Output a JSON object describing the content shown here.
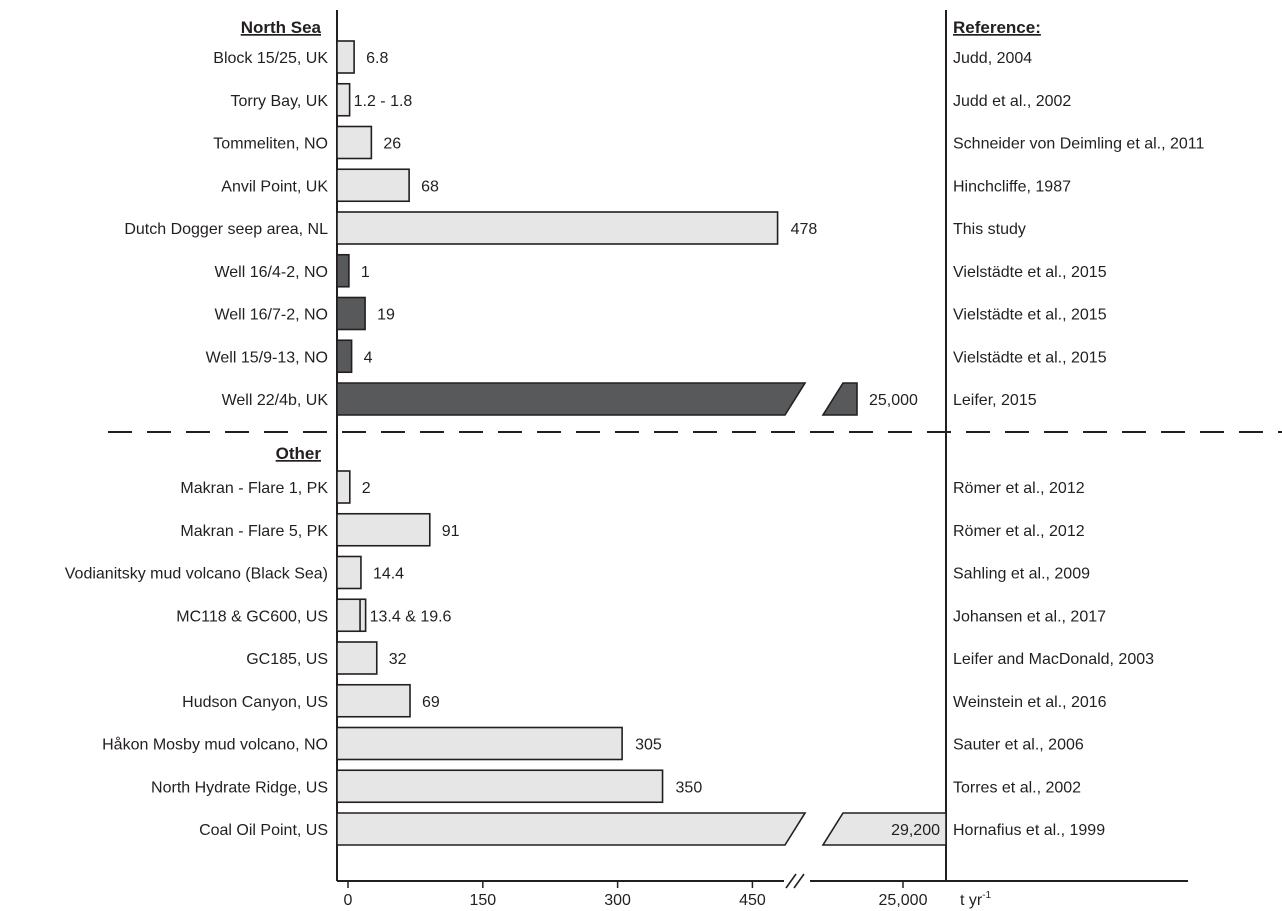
{
  "chart_data": {
    "type": "bar",
    "orientation": "horizontal",
    "axis": {
      "tick_labels": [
        "0",
        "150",
        "300",
        "450",
        "25,000"
      ],
      "unit_label": "t yr",
      "unit_superscript": "-1",
      "linear_range": [
        0,
        450
      ],
      "axis_break": true
    },
    "reference_header": "Reference:",
    "colors": {
      "seep": "#e6e6e6",
      "well": "#58595b",
      "stroke": "#231f20"
    },
    "groups": [
      {
        "name": "North Sea",
        "items": [
          {
            "site": "Block 15/25, UK",
            "value": 6.8,
            "value_label": "6.8",
            "kind": "seep",
            "reference": "Judd, 2004"
          },
          {
            "site": "Torry Bay, UK",
            "value": 1.8,
            "value_label": "1.2 - 1.8",
            "kind": "seep",
            "reference": "Judd et al., 2002"
          },
          {
            "site": "Tommeliten, NO",
            "value": 26,
            "value_label": "26",
            "kind": "seep",
            "reference": "Schneider von Deimling et al., 2011"
          },
          {
            "site": "Anvil Point, UK",
            "value": 68,
            "value_label": "68",
            "kind": "seep",
            "reference": "Hinchcliffe, 1987"
          },
          {
            "site": "Dutch Dogger seep area, NL",
            "value": 478,
            "value_label": "478",
            "kind": "seep",
            "reference": "This study"
          },
          {
            "site": "Well 16/4-2, NO",
            "value": 1,
            "value_label": "1",
            "kind": "well",
            "reference": "Vielstädte et al., 2015"
          },
          {
            "site": "Well 16/7-2, NO",
            "value": 19,
            "value_label": "19",
            "kind": "well",
            "reference": "Vielstädte et al., 2015"
          },
          {
            "site": "Well 15/9-13, NO",
            "value": 4,
            "value_label": "4",
            "kind": "well",
            "reference": "Vielstädte et al., 2015"
          },
          {
            "site": "Well 22/4b, UK",
            "value": 25000,
            "value_label": "25,000",
            "kind": "well",
            "reference": "Leifer, 2015",
            "broken": true
          }
        ]
      },
      {
        "name": "Other",
        "items": [
          {
            "site": "Makran - Flare 1, PK",
            "value": 2,
            "value_label": "2",
            "kind": "seep",
            "reference": "Römer et al., 2012"
          },
          {
            "site": "Makran - Flare 5, PK",
            "value": 91,
            "value_label": "91",
            "kind": "seep",
            "reference": "Römer et al., 2012"
          },
          {
            "site": "Vodianitsky mud volcano (Black Sea)",
            "value": 14.4,
            "value_label": "14.4",
            "kind": "seep",
            "reference": "Sahling et al., 2009"
          },
          {
            "site": "MC118 & GC600, US",
            "value": 19.6,
            "value_label": "13.4 & 19.6",
            "inner": 13.4,
            "kind": "seep",
            "reference": "Johansen et al., 2017"
          },
          {
            "site": "GC185, US",
            "value": 32,
            "value_label": "32",
            "kind": "seep",
            "reference": "Leifer and MacDonald, 2003"
          },
          {
            "site": "Hudson Canyon, US",
            "value": 69,
            "value_label": "69",
            "kind": "seep",
            "reference": "Weinstein et al., 2016"
          },
          {
            "site": "Håkon Mosby mud volcano, NO",
            "value": 305,
            "value_label": "305",
            "kind": "seep",
            "reference": "Sauter et al., 2006"
          },
          {
            "site": "North Hydrate Ridge, US",
            "value": 350,
            "value_label": "350",
            "kind": "seep",
            "reference": "Torres et al., 2002"
          },
          {
            "site": "Coal Oil Point, US",
            "value": 29200,
            "value_label": "29,200",
            "kind": "seep",
            "reference": "Hornafius et al., 1999",
            "broken": true,
            "label_inside": true
          }
        ]
      }
    ]
  }
}
